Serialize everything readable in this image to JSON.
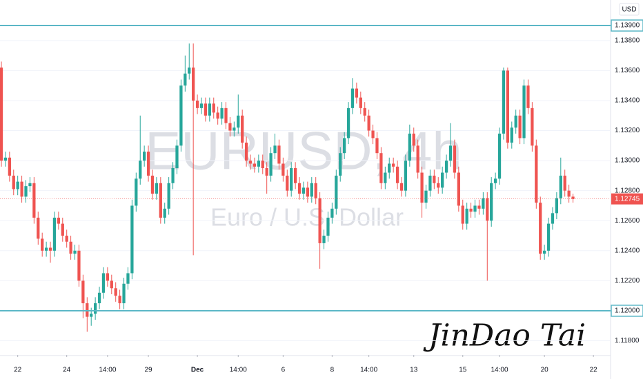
{
  "chart_data": {
    "type": "candlestick",
    "watermark": [
      "EURUSD, 4h",
      "Euro / U.S. Dollar"
    ],
    "signature": "JinDao Tai",
    "currency": "USD",
    "up_color": "#26a69a",
    "down_color": "#ef5350",
    "grid": true,
    "xlim": [
      -0.34,
      149.2
    ],
    "xticks": [
      {
        "value": 4,
        "label": "22"
      },
      {
        "value": 16,
        "label": "24"
      },
      {
        "value": 26,
        "label": "14:00"
      },
      {
        "value": 36,
        "label": "29"
      },
      {
        "value": 48,
        "label": "Dec"
      },
      {
        "value": 58,
        "label": "14:00"
      },
      {
        "value": 69,
        "label": "6"
      },
      {
        "value": 81,
        "label": "8"
      },
      {
        "value": 90,
        "label": "14:00"
      },
      {
        "value": 101,
        "label": "13"
      },
      {
        "value": 113,
        "label": "15"
      },
      {
        "value": 122,
        "label": "14:00"
      },
      {
        "value": 133,
        "label": "20"
      },
      {
        "value": 145,
        "label": "22"
      }
    ],
    "ylim": [
      1.11706,
      1.1407
    ],
    "yticks": [
      {
        "value": 1.118,
        "label": "1.11800"
      },
      {
        "value": 1.122,
        "label": "1.12200"
      },
      {
        "value": 1.124,
        "label": "1.12400"
      },
      {
        "value": 1.126,
        "label": "1.12600"
      },
      {
        "value": 1.128,
        "label": "1.12800"
      },
      {
        "value": 1.13,
        "label": "1.13000"
      },
      {
        "value": 1.132,
        "label": "1.13200"
      },
      {
        "value": 1.134,
        "label": "1.13400"
      },
      {
        "value": 1.136,
        "label": "1.13600"
      },
      {
        "value": 1.138,
        "label": "1.13800"
      }
    ],
    "levels": [
      {
        "value": 1.139,
        "label": "1.13900",
        "color": "#5bb7c6"
      },
      {
        "value": 1.12,
        "label": "1.12000",
        "color": "#5bb7c6"
      }
    ],
    "last_price": {
      "value": 1.12745,
      "label": "1.12745",
      "color": "#ef5350"
    },
    "open": [
      1.1362,
      1.13,
      1.1302,
      1.129,
      1.1281,
      1.1286,
      1.1276,
      1.1283,
      1.1285,
      1.1262,
      1.1248,
      1.124,
      1.1242,
      1.124,
      1.1262,
      1.1258,
      1.125,
      1.1246,
      1.1238,
      1.124,
      1.122,
      1.1205,
      1.1196,
      1.1198,
      1.1205,
      1.1212,
      1.1225,
      1.122,
      1.1215,
      1.121,
      1.1205,
      1.1218,
      1.1225,
      1.127,
      1.1288,
      1.13,
      1.1306,
      1.129,
      1.1278,
      1.1285,
      1.1262,
      1.1268,
      1.1285,
      1.1295,
      1.131,
      1.135,
      1.1358,
      1.1362,
      1.134,
      1.1335,
      1.1338,
      1.133,
      1.1338,
      1.1332,
      1.1328,
      1.1335,
      1.1325,
      1.132,
      1.1322,
      1.133,
      1.1312,
      1.13,
      1.1298,
      1.1296,
      1.13,
      1.1295,
      1.129,
      1.1305,
      1.131,
      1.1298,
      1.129,
      1.128,
      1.1295,
      1.1285,
      1.1278,
      1.1282,
      1.1276,
      1.1285,
      1.1275,
      1.1245,
      1.125,
      1.1262,
      1.1268,
      1.129,
      1.1305,
      1.1315,
      1.1335,
      1.1348,
      1.1342,
      1.1335,
      1.133,
      1.132,
      1.1315,
      1.1305,
      1.1285,
      1.1292,
      1.1298,
      1.1296,
      1.1285,
      1.128,
      1.13,
      1.1318,
      1.131,
      1.1292,
      1.1272,
      1.128,
      1.129,
      1.1285,
      1.1282,
      1.1292,
      1.13,
      1.131,
      1.1292,
      1.127,
      1.1258,
      1.1268,
      1.1266,
      1.127,
      1.1268,
      1.1275,
      1.126,
      1.1285,
      1.1288,
      1.1318,
      1.136,
      1.1312,
      1.1322,
      1.133,
      1.1315,
      1.135,
      1.1335,
      1.131,
      1.1272,
      1.1238,
      1.124,
      1.1258,
      1.1265,
      1.1275,
      1.129,
      1.128,
      1.1276
    ],
    "high": [
      1.1366,
      1.1306,
      1.1306,
      1.1294,
      1.129,
      1.129,
      1.1287,
      1.1289,
      1.1289,
      1.1266,
      1.1252,
      1.1246,
      1.1246,
      1.1266,
      1.1266,
      1.1262,
      1.1254,
      1.125,
      1.1244,
      1.1244,
      1.1224,
      1.1209,
      1.1202,
      1.1209,
      1.1216,
      1.1229,
      1.1229,
      1.1224,
      1.1219,
      1.1214,
      1.1222,
      1.1229,
      1.1274,
      1.1292,
      1.133,
      1.131,
      1.131,
      1.1294,
      1.1289,
      1.1289,
      1.1272,
      1.1289,
      1.1299,
      1.1314,
      1.1354,
      1.137,
      1.1378,
      1.1378,
      1.1344,
      1.1342,
      1.1342,
      1.1342,
      1.1342,
      1.1336,
      1.1339,
      1.1339,
      1.1329,
      1.1326,
      1.1344,
      1.1334,
      1.1316,
      1.1304,
      1.1302,
      1.1304,
      1.1304,
      1.1299,
      1.1309,
      1.1318,
      1.1314,
      1.1302,
      1.1294,
      1.1299,
      1.1299,
      1.1289,
      1.1286,
      1.1286,
      1.1289,
      1.1289,
      1.1279,
      1.1254,
      1.1266,
      1.1272,
      1.1294,
      1.1309,
      1.1319,
      1.1339,
      1.1355,
      1.1352,
      1.1346,
      1.1339,
      1.1334,
      1.1324,
      1.1319,
      1.1309,
      1.1296,
      1.1302,
      1.1302,
      1.13,
      1.1289,
      1.1304,
      1.1324,
      1.1322,
      1.1314,
      1.1296,
      1.1284,
      1.1294,
      1.1294,
      1.1289,
      1.1296,
      1.1304,
      1.1325,
      1.1314,
      1.1296,
      1.1274,
      1.1272,
      1.1272,
      1.1274,
      1.1274,
      1.1279,
      1.1279,
      1.1289,
      1.1292,
      1.1322,
      1.1362,
      1.1362,
      1.1326,
      1.1334,
      1.1334,
      1.1354,
      1.1354,
      1.1339,
      1.1314,
      1.1276,
      1.1244,
      1.1262,
      1.1269,
      1.1279,
      1.1302,
      1.1294,
      1.1284,
      1.1278
    ],
    "low": [
      1.1296,
      1.1296,
      1.1286,
      1.1277,
      1.1277,
      1.1272,
      1.1272,
      1.1279,
      1.1258,
      1.1244,
      1.1236,
      1.1236,
      1.1232,
      1.1236,
      1.1254,
      1.1246,
      1.1242,
      1.1234,
      1.1234,
      1.1216,
      1.1195,
      1.1186,
      1.119,
      1.1194,
      1.1201,
      1.1208,
      1.1216,
      1.1211,
      1.1206,
      1.1201,
      1.1201,
      1.1214,
      1.1221,
      1.1266,
      1.1284,
      1.1296,
      1.1286,
      1.1274,
      1.1274,
      1.1258,
      1.1258,
      1.1264,
      1.1281,
      1.1291,
      1.1306,
      1.1346,
      1.1354,
      1.1237,
      1.1331,
      1.1331,
      1.1326,
      1.1326,
      1.1328,
      1.1324,
      1.1324,
      1.1321,
      1.1316,
      1.1316,
      1.1318,
      1.1308,
      1.1296,
      1.1294,
      1.1292,
      1.1292,
      1.1291,
      1.1278,
      1.1286,
      1.1301,
      1.1294,
      1.1286,
      1.1276,
      1.1276,
      1.1281,
      1.1274,
      1.1274,
      1.1272,
      1.1272,
      1.1271,
      1.1228,
      1.1241,
      1.1246,
      1.1258,
      1.1264,
      1.1286,
      1.1301,
      1.1311,
      1.1331,
      1.1338,
      1.1331,
      1.1326,
      1.1316,
      1.1311,
      1.1301,
      1.1281,
      1.1281,
      1.1288,
      1.1292,
      1.1281,
      1.1276,
      1.1276,
      1.1296,
      1.1306,
      1.1288,
      1.1262,
      1.1268,
      1.1276,
      1.1281,
      1.1278,
      1.1278,
      1.1288,
      1.1296,
      1.1288,
      1.1266,
      1.1254,
      1.1254,
      1.1262,
      1.1262,
      1.1264,
      1.1264,
      1.122,
      1.1256,
      1.1281,
      1.1284,
      1.1314,
      1.1308,
      1.1308,
      1.1318,
      1.1311,
      1.1311,
      1.1331,
      1.1306,
      1.1268,
      1.1234,
      1.1234,
      1.1236,
      1.1254,
      1.1261,
      1.1271,
      1.1276,
      1.1272,
      1.1272
    ],
    "close": [
      1.13,
      1.1302,
      1.129,
      1.1281,
      1.1286,
      1.1276,
      1.1283,
      1.1285,
      1.1262,
      1.1248,
      1.124,
      1.1242,
      1.124,
      1.1262,
      1.1258,
      1.125,
      1.1246,
      1.1238,
      1.124,
      1.122,
      1.1205,
      1.1196,
      1.1198,
      1.1205,
      1.1212,
      1.1225,
      1.122,
      1.1215,
      1.121,
      1.1205,
      1.1218,
      1.1225,
      1.127,
      1.1288,
      1.13,
      1.1306,
      1.129,
      1.1278,
      1.1285,
      1.1262,
      1.1268,
      1.1285,
      1.1295,
      1.131,
      1.135,
      1.1358,
      1.1362,
      1.134,
      1.1335,
      1.1338,
      1.133,
      1.1338,
      1.1332,
      1.1328,
      1.1335,
      1.1325,
      1.132,
      1.1322,
      1.133,
      1.1312,
      1.13,
      1.1298,
      1.1296,
      1.13,
      1.1295,
      1.129,
      1.1305,
      1.131,
      1.1298,
      1.129,
      1.128,
      1.1295,
      1.1285,
      1.1278,
      1.1282,
      1.1276,
      1.1285,
      1.1275,
      1.1245,
      1.125,
      1.1262,
      1.1268,
      1.129,
      1.1305,
      1.1315,
      1.1335,
      1.1348,
      1.1342,
      1.1335,
      1.133,
      1.132,
      1.1315,
      1.1305,
      1.1285,
      1.1292,
      1.1298,
      1.1296,
      1.1285,
      1.128,
      1.13,
      1.1318,
      1.131,
      1.1292,
      1.1272,
      1.128,
      1.129,
      1.1285,
      1.1282,
      1.1292,
      1.13,
      1.131,
      1.1292,
      1.127,
      1.1258,
      1.1268,
      1.1266,
      1.127,
      1.1268,
      1.1275,
      1.126,
      1.1285,
      1.1288,
      1.1318,
      1.136,
      1.1312,
      1.1322,
      1.133,
      1.1315,
      1.135,
      1.1335,
      1.131,
      1.1272,
      1.1238,
      1.124,
      1.1258,
      1.1265,
      1.1275,
      1.129,
      1.128,
      1.1276,
      1.12745
    ]
  }
}
